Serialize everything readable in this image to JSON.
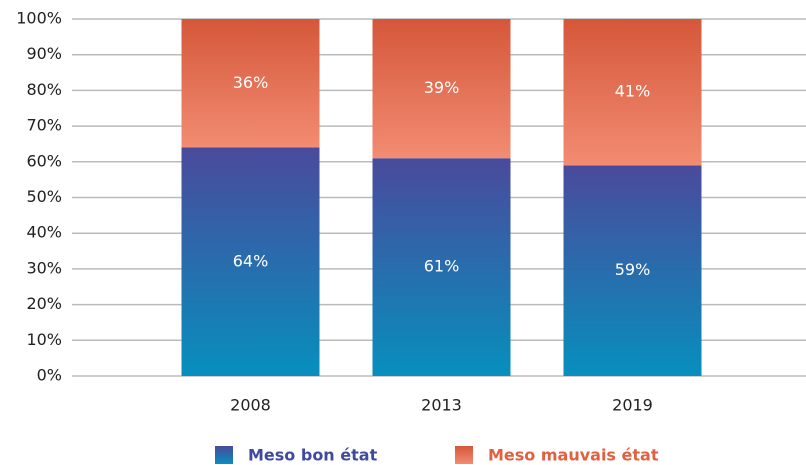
{
  "chart_data": {
    "type": "stacked_bar",
    "categories": [
      "2008",
      "2013",
      "2019"
    ],
    "series": [
      {
        "name": "Meso bon état",
        "color": "#3f4a9e",
        "values": [
          64,
          61,
          59
        ],
        "value_labels": [
          "64%",
          "61%",
          "59%"
        ]
      },
      {
        "name": "Meso mauvais état",
        "color": "#e0603f",
        "values": [
          36,
          39,
          41
        ],
        "value_labels": [
          "36%",
          "39%",
          "41%"
        ]
      }
    ],
    "ylim": [
      0,
      100
    ],
    "yticks": [
      {
        "value": 0,
        "label": "0%"
      },
      {
        "value": 10,
        "label": "10%"
      },
      {
        "value": 20,
        "label": "20%"
      },
      {
        "value": 30,
        "label": "30%"
      },
      {
        "value": 40,
        "label": "40%"
      },
      {
        "value": 50,
        "label": "50%"
      },
      {
        "value": 60,
        "label": "60%"
      },
      {
        "value": 70,
        "label": "70%"
      },
      {
        "value": 80,
        "label": "80%"
      },
      {
        "value": 90,
        "label": "90%"
      },
      {
        "value": 100,
        "label": "100%"
      }
    ],
    "grid": true
  }
}
